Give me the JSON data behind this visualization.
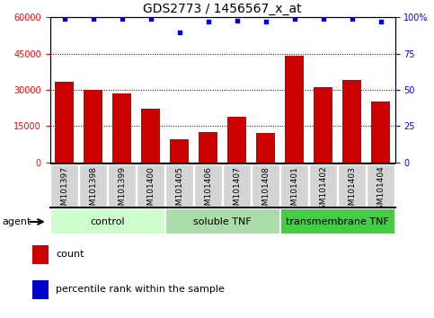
{
  "title": "GDS2773 / 1456567_x_at",
  "samples": [
    "GSM101397",
    "GSM101398",
    "GSM101399",
    "GSM101400",
    "GSM101405",
    "GSM101406",
    "GSM101407",
    "GSM101408",
    "GSM101401",
    "GSM101402",
    "GSM101403",
    "GSM101404"
  ],
  "counts": [
    33500,
    30000,
    28500,
    22000,
    9500,
    12500,
    19000,
    12000,
    44000,
    31000,
    34000,
    25000
  ],
  "percentiles": [
    99,
    99,
    99,
    99,
    90,
    97,
    98,
    97,
    99,
    99,
    99,
    97
  ],
  "bar_color": "#cc0000",
  "dot_color": "#0000cc",
  "ylim_left": [
    0,
    60000
  ],
  "ylim_right": [
    0,
    100
  ],
  "yticks_left": [
    0,
    15000,
    30000,
    45000,
    60000
  ],
  "yticks_right": [
    0,
    25,
    50,
    75,
    100
  ],
  "groups": [
    {
      "label": "control",
      "start": 0,
      "end": 4,
      "color": "#bbeeaa"
    },
    {
      "label": "soluble TNF",
      "start": 4,
      "end": 8,
      "color": "#99ee88"
    },
    {
      "label": "transmembrane TNF",
      "start": 8,
      "end": 12,
      "color": "#33cc33"
    }
  ],
  "agent_label": "agent",
  "legend_count_label": "count",
  "legend_percentile_label": "percentile rank within the sample",
  "bg_color": "#ffffff",
  "title_fontsize": 10,
  "axis_fontsize": 7,
  "group_label_color_1": "#ccffcc",
  "group_label_color_2": "#aaddaa",
  "group_label_color_3": "#44cc44"
}
